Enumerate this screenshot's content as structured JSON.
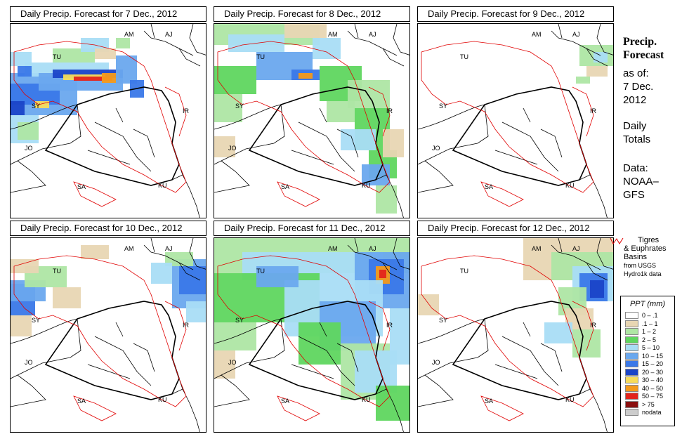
{
  "panels": [
    {
      "title": "Daily Precip. Forecast for  7 Dec., 2012",
      "map_ref": "p7"
    },
    {
      "title": "Daily Precip. Forecast for  8 Dec., 2012",
      "map_ref": "p8"
    },
    {
      "title": "Daily Precip. Forecast for  9 Dec., 2012",
      "map_ref": "p9"
    },
    {
      "title": "Daily Precip. Forecast for  10 Dec., 2012",
      "map_ref": "p10"
    },
    {
      "title": "Daily Precip. Forecast for  11 Dec., 2012",
      "map_ref": "p11"
    },
    {
      "title": "Daily Precip. Forecast for  12 Dec., 2012",
      "map_ref": "p12"
    }
  ],
  "map_labels": {
    "am": "AM",
    "aj": "AJ",
    "tu": "TU",
    "sy": "SY",
    "ir": "IR",
    "jo": "JO",
    "sa": "SA",
    "ku": "KU"
  },
  "side": {
    "title_line1": "Precip.",
    "title_line2": "Forecast",
    "as_of": "as of:",
    "date_line1": "7 Dec.",
    "date_line2": "2012",
    "daily_line1": "Daily",
    "daily_line2": "Totals",
    "data_line1": "Data:",
    "data_line2": "NOAA–",
    "data_line3": "GFS"
  },
  "basin_note": {
    "line1": "Tigres",
    "line2": "& Euphrates",
    "line3": "Basins",
    "line4": "from USGS",
    "line5": "Hydro1k data",
    "color": "#e00000"
  },
  "legend": {
    "title": "PPT (mm)",
    "items": [
      {
        "label": "0 – .1",
        "color": "#ffffff"
      },
      {
        "label": ".1 – 1",
        "color": "#e8d6b3"
      },
      {
        "label": "1 – 2",
        "color": "#aee6a4"
      },
      {
        "label": "2 – 5",
        "color": "#5fd65f"
      },
      {
        "label": "5 – 10",
        "color": "#a9ddf5"
      },
      {
        "label": "10 – 15",
        "color": "#6aa8ee"
      },
      {
        "label": "15 – 20",
        "color": "#3a78e8"
      },
      {
        "label": "20 – 30",
        "color": "#1a44c8"
      },
      {
        "label": "30 – 40",
        "color": "#f7dc5a"
      },
      {
        "label": "40 – 50",
        "color": "#f49a1a"
      },
      {
        "label": "50 – 75",
        "color": "#e3241b"
      },
      {
        "label": "> 75",
        "color": "#8b1010"
      },
      {
        "label": "nodata",
        "color": "#cccccc"
      }
    ]
  }
}
